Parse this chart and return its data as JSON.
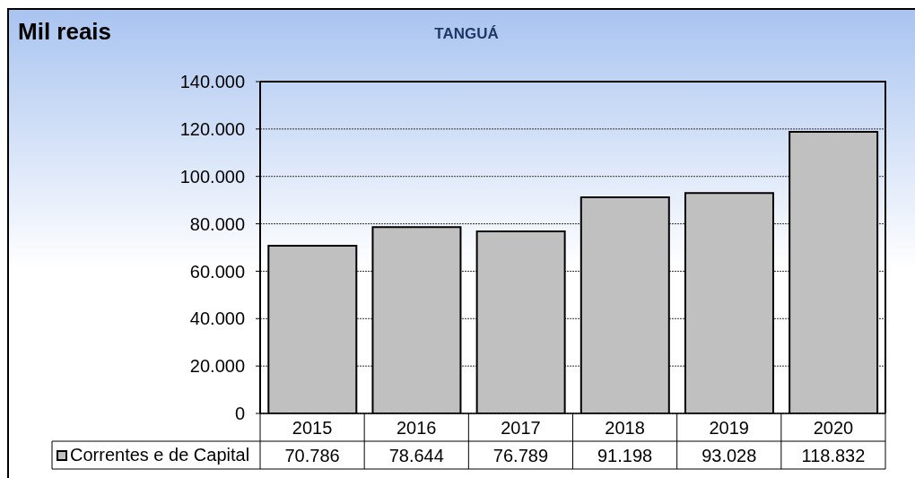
{
  "chart_data": {
    "type": "bar",
    "title": "TANGUÁ",
    "ylabel": "Mil reais",
    "categories": [
      "2015",
      "2016",
      "2017",
      "2018",
      "2019",
      "2020"
    ],
    "series": [
      {
        "name": "Correntes e de Capital",
        "color": "#c0c0c0",
        "values": [
          70786,
          78644,
          76789,
          91198,
          93028,
          118832
        ],
        "value_labels": [
          "70.786",
          "78.644",
          "76.789",
          "91.198",
          "93.028",
          "118.832"
        ]
      }
    ],
    "ylim": [
      0,
      140000
    ],
    "yticks": [
      0,
      {
        "value": 20000,
        "label": "20.000"
      },
      {
        "value": 40000,
        "label": "40.000"
      },
      {
        "value": 60000,
        "label": "60.000"
      },
      {
        "value": 80000,
        "label": "80.000"
      },
      {
        "value": 100000,
        "label": "100.000"
      },
      {
        "value": 120000,
        "label": "120.000"
      },
      {
        "value": 140000,
        "label": "140.000"
      }
    ],
    "grid": "y",
    "legend": "bottom left"
  }
}
